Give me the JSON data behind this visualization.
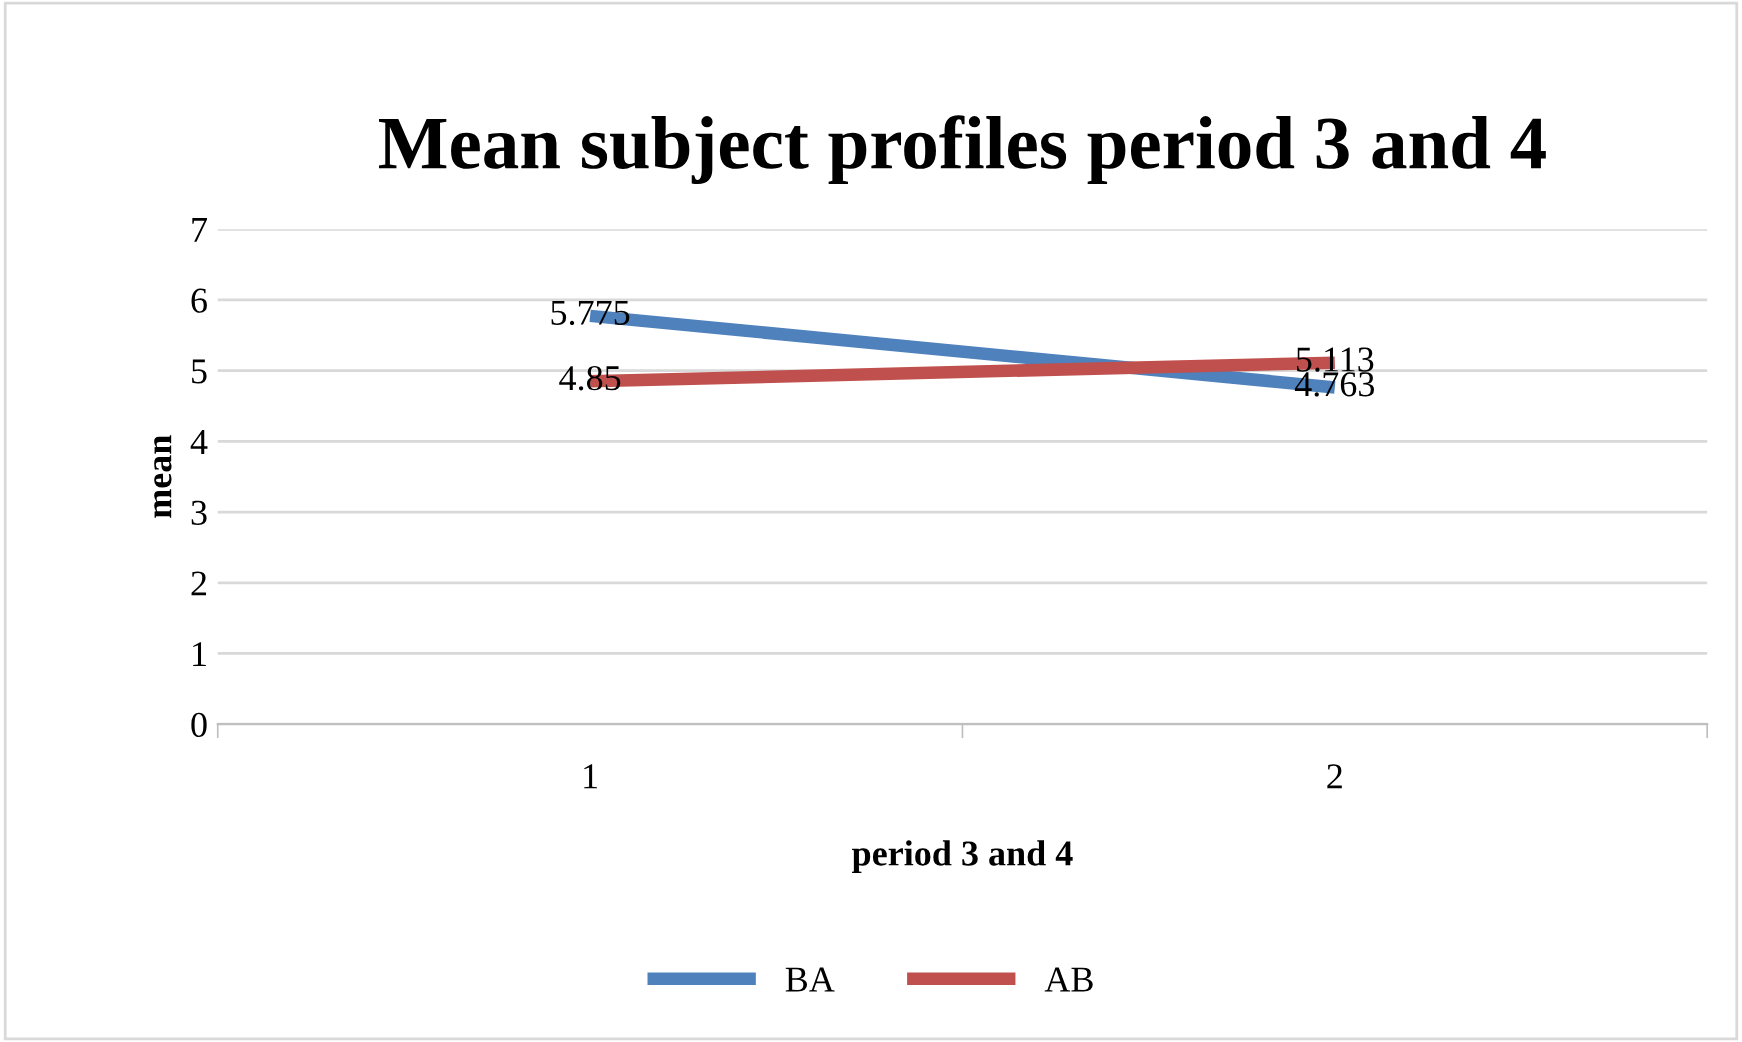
{
  "chart_data": {
    "type": "line",
    "title": "Mean subject profiles period 3 and 4",
    "xlabel": "period 3 and 4",
    "ylabel": "mean",
    "categories": [
      "1",
      "2"
    ],
    "series": [
      {
        "name": "BA",
        "color": "#4f81bd",
        "values": [
          5.775,
          4.763
        ]
      },
      {
        "name": "AB",
        "color": "#c0504d",
        "values": [
          4.85,
          5.113
        ]
      }
    ],
    "ylim": [
      0,
      7
    ],
    "yticks": [
      0,
      1,
      2,
      3,
      4,
      5,
      6,
      7
    ],
    "grid": "y",
    "legend": "bottom",
    "data_labels": true,
    "marker": "none",
    "line_style": "solid"
  }
}
